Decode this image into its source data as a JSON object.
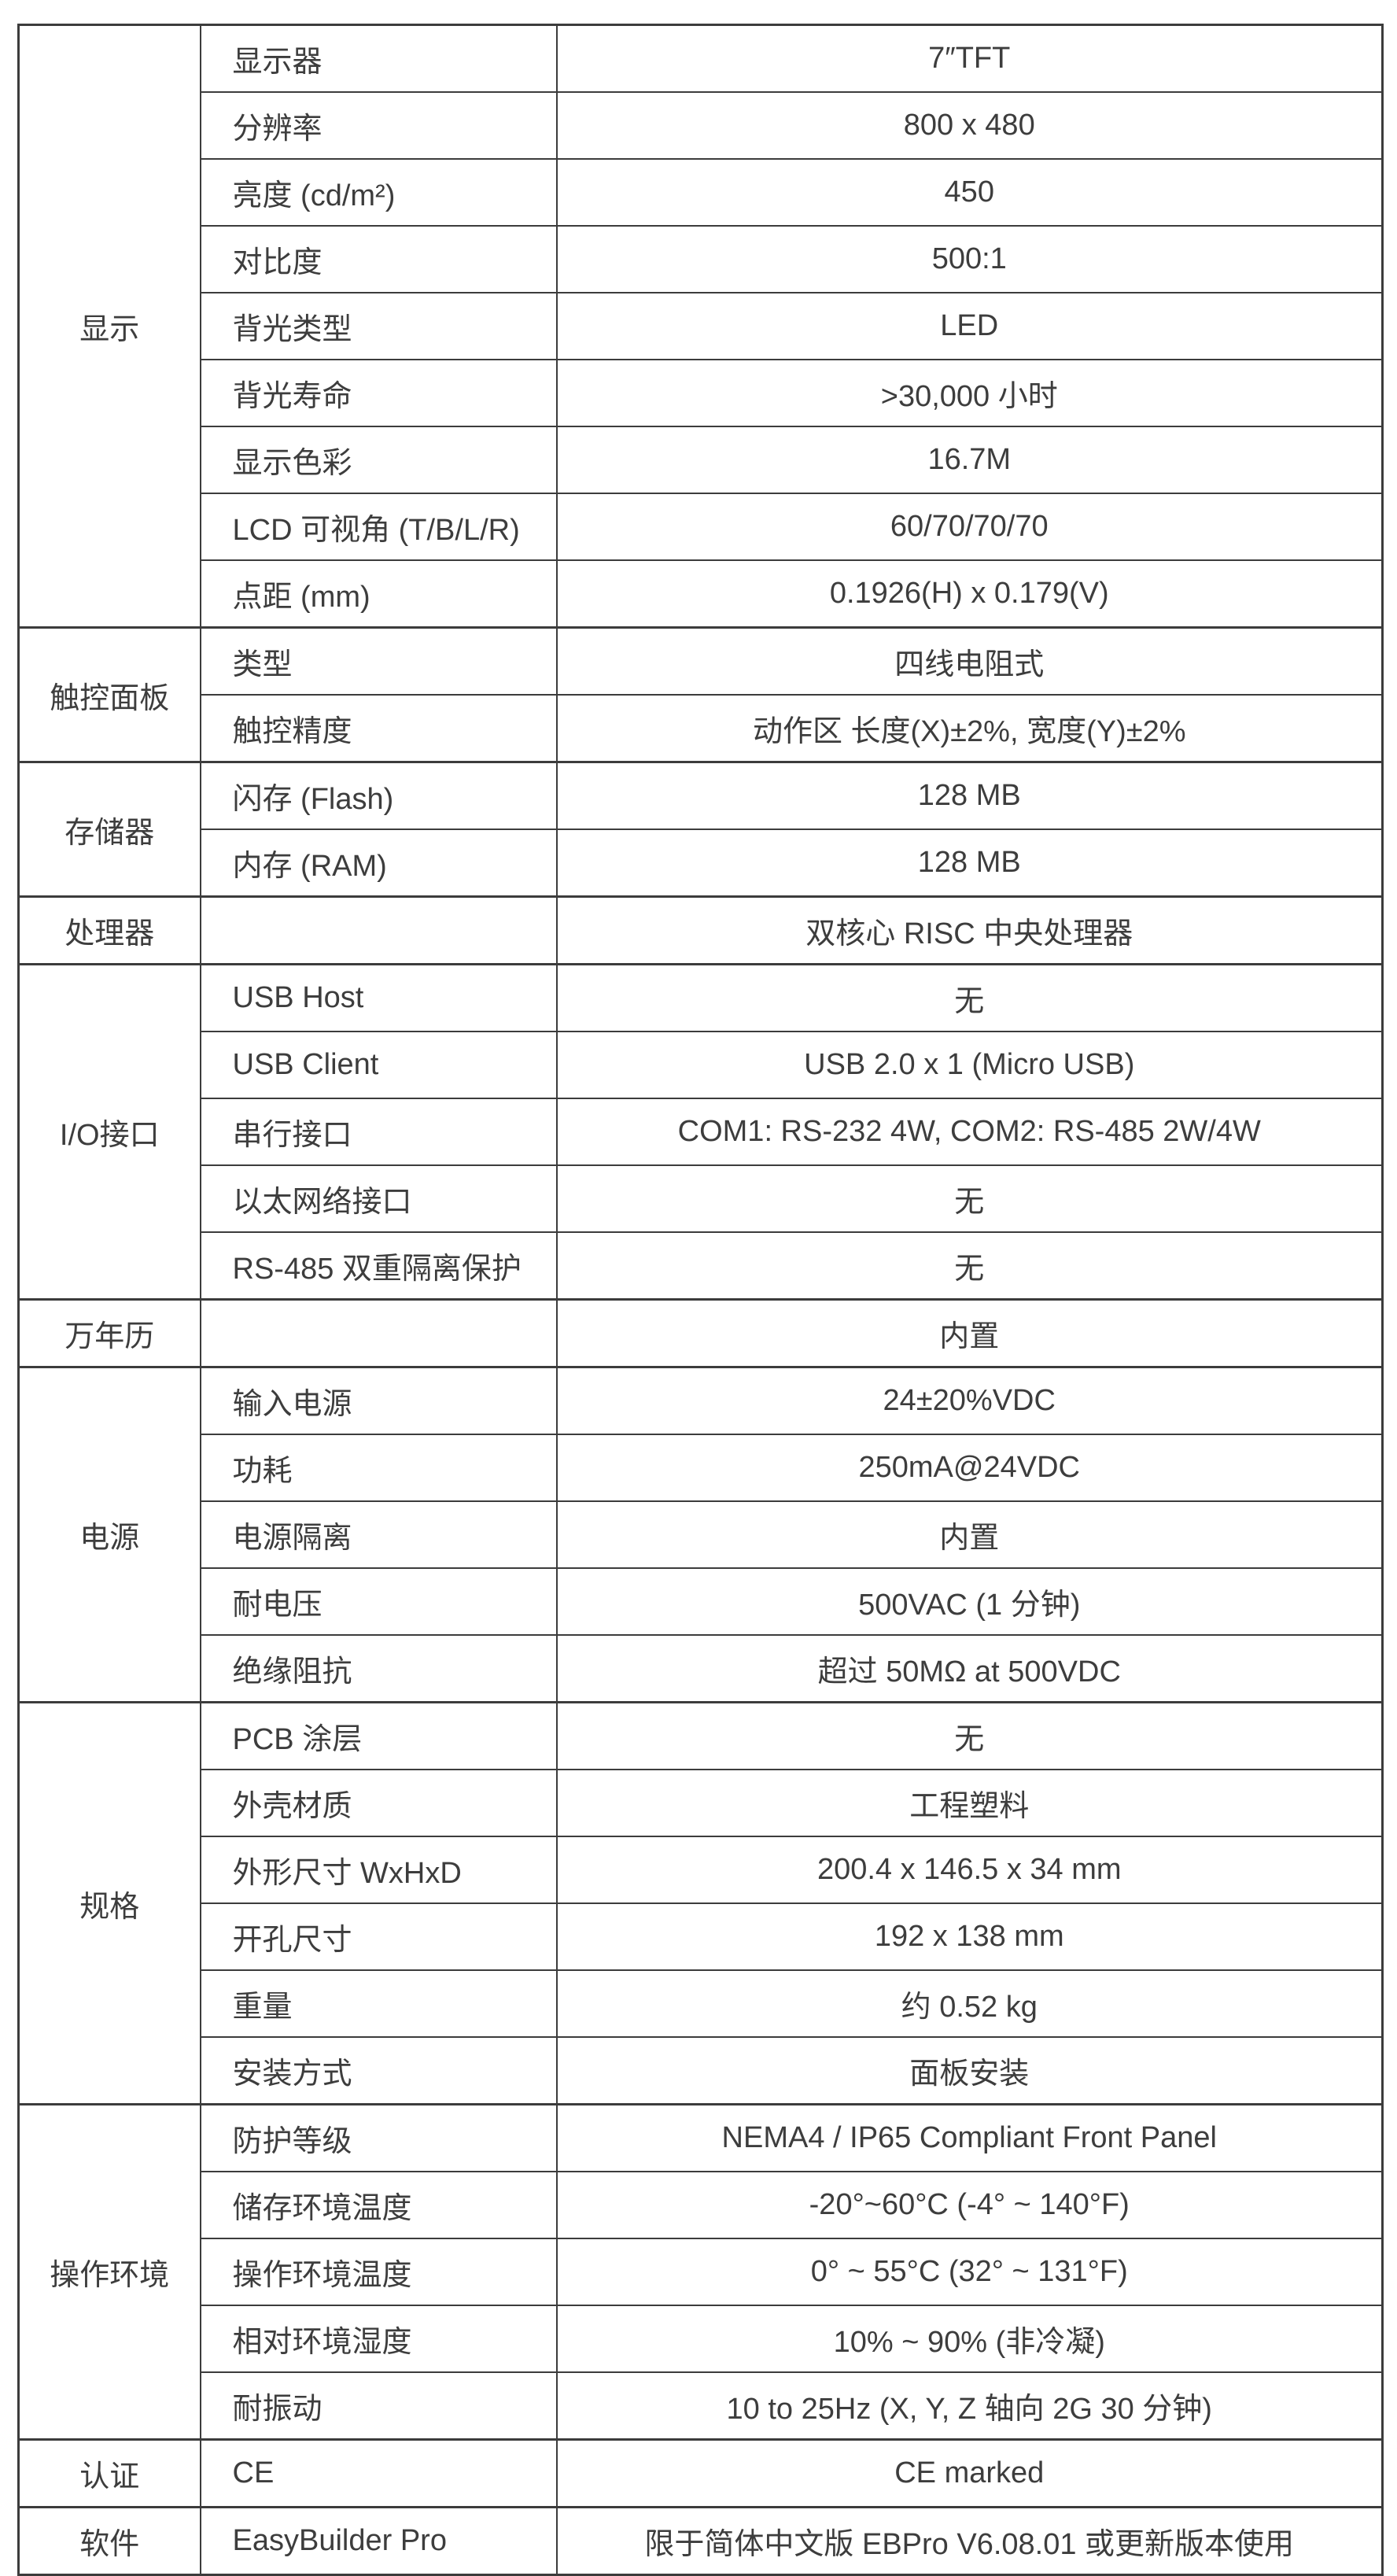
{
  "colors": {
    "background": "#ffffff",
    "text": "#3d3d3d",
    "border": "#3c3c3c"
  },
  "table": {
    "sections": [
      {
        "category": "显示",
        "rows": [
          {
            "label": "显示器",
            "value": "7″TFT"
          },
          {
            "label": "分辨率",
            "value": "800 x 480"
          },
          {
            "label": "亮度 (cd/m²)",
            "value": "450"
          },
          {
            "label": "对比度",
            "value": "500:1"
          },
          {
            "label": "背光类型",
            "value": "LED"
          },
          {
            "label": "背光寿命",
            "value": ">30,000 小时"
          },
          {
            "label": "显示色彩",
            "value": "16.7M"
          },
          {
            "label": "LCD 可视角 (T/B/L/R)",
            "value": "60/70/70/70"
          },
          {
            "label": "点距 (mm)",
            "value": "0.1926(H) x 0.179(V)"
          }
        ]
      },
      {
        "category": "触控面板",
        "rows": [
          {
            "label": "类型",
            "value": "四线电阻式"
          },
          {
            "label": "触控精度",
            "value": "动作区 长度(X)±2%, 宽度(Y)±2%"
          }
        ]
      },
      {
        "category": "存储器",
        "rows": [
          {
            "label": "闪存 (Flash)",
            "value": "128 MB"
          },
          {
            "label": "内存 (RAM)",
            "value": "128 MB"
          }
        ]
      },
      {
        "category": "处理器",
        "rows": [
          {
            "label": "",
            "value": "双核心 RISC 中央处理器"
          }
        ]
      },
      {
        "category": "I/O接口",
        "rows": [
          {
            "label": "USB Host",
            "value": "无"
          },
          {
            "label": "USB Client",
            "value": "USB 2.0 x 1 (Micro USB)"
          },
          {
            "label": "串行接口",
            "value": "COM1: RS-232 4W, COM2: RS-485 2W/4W"
          },
          {
            "label": "以太网络接口",
            "value": "无"
          },
          {
            "label": "RS-485 双重隔离保护",
            "value": "无"
          }
        ]
      },
      {
        "category": "万年历",
        "rows": [
          {
            "label": "",
            "value": "内置"
          }
        ]
      },
      {
        "category": "电源",
        "rows": [
          {
            "label": "输入电源",
            "value": "24±20%VDC"
          },
          {
            "label": "功耗",
            "value": "250mA@24VDC"
          },
          {
            "label": "电源隔离",
            "value": "内置"
          },
          {
            "label": "耐电压",
            "value": "500VAC (1 分钟)"
          },
          {
            "label": "绝缘阻抗",
            "value": "超过 50MΩ at 500VDC"
          }
        ]
      },
      {
        "category": "规格",
        "rows": [
          {
            "label": "PCB 涂层",
            "value": "无"
          },
          {
            "label": "外壳材质",
            "value": "工程塑料"
          },
          {
            "label": "外形尺寸 WxHxD",
            "value": "200.4 x 146.5 x 34 mm"
          },
          {
            "label": "开孔尺寸",
            "value": "192 x 138 mm"
          },
          {
            "label": "重量",
            "value": "约 0.52 kg"
          },
          {
            "label": "安装方式",
            "value": "面板安装"
          }
        ]
      },
      {
        "category": "操作环境",
        "rows": [
          {
            "label": "防护等级",
            "value": "NEMA4 / IP65 Compliant Front Panel"
          },
          {
            "label": "储存环境温度",
            "value": "-20°~60°C (-4° ~ 140°F)"
          },
          {
            "label": "操作环境温度",
            "value": "0° ~ 55°C (32° ~ 131°F)"
          },
          {
            "label": "相对环境湿度",
            "value": "10% ~ 90% (非冷凝)"
          },
          {
            "label": "耐振动",
            "value": "10 to 25Hz (X, Y, Z 轴向 2G 30 分钟)"
          }
        ]
      },
      {
        "category": "认证",
        "rows": [
          {
            "label": "CE",
            "value": "CE marked"
          }
        ]
      },
      {
        "category": "软件",
        "rows": [
          {
            "label": "EasyBuilder Pro",
            "value": "限于简体中文版 EBPro V6.08.01 或更新版本使用"
          }
        ]
      }
    ]
  }
}
